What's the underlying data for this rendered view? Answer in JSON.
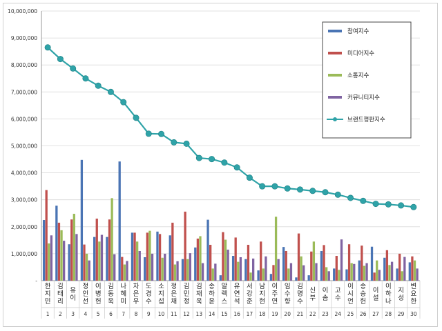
{
  "chart_data": {
    "type": "bar",
    "title": "",
    "xlabel": "",
    "ylabel": "",
    "ylim": [
      0,
      10000000
    ],
    "yticks": [
      0,
      1000000,
      2000000,
      3000000,
      4000000,
      5000000,
      6000000,
      7000000,
      8000000,
      9000000,
      10000000
    ],
    "ytick_labels": [
      "-",
      "1,000,000",
      "2,000,000",
      "3,000,000",
      "4,000,000",
      "5,000,000",
      "6,000,000",
      "7,000,000",
      "8,000,000",
      "9,000,000",
      "10,000,000"
    ],
    "grid": true,
    "legend_position": "top-right",
    "categories": [
      "한지민",
      "김태리",
      "유이",
      "정인선",
      "이병헌",
      "김동욱",
      "나혜미",
      "차은우",
      "도경수",
      "소지섭",
      "정은채",
      "김민정",
      "김재욱",
      "송하윤",
      "알렉스",
      "유연석",
      "서강준",
      "남지현",
      "이주연",
      "임수향",
      "김명수",
      "신부",
      "이솜",
      "고수",
      "이시언",
      "송승헌",
      "이설",
      "이하나",
      "지성",
      "변요한"
    ],
    "ranks": [
      "1",
      "2",
      "3",
      "4",
      "5",
      "6",
      "7",
      "8",
      "9",
      "10",
      "11",
      "12",
      "13",
      "14",
      "15",
      "16",
      "17",
      "18",
      "19",
      "20",
      "21",
      "22",
      "23",
      "24",
      "25",
      "26",
      "27",
      "28",
      "29",
      "30"
    ],
    "series": [
      {
        "name": "참여지수",
        "kind": "bar",
        "color": "#4a74b4",
        "values": [
          2250000,
          2780000,
          1350000,
          4480000,
          1620000,
          1620000,
          4420000,
          1780000,
          870000,
          1820000,
          1680000,
          800000,
          1230000,
          2260000,
          200000,
          920000,
          800000,
          380000,
          250000,
          1250000,
          120000,
          200000,
          1100000,
          450000,
          420000,
          750000,
          1260000,
          850000,
          450000,
          680000
        ]
      },
      {
        "name": "미디어지수",
        "kind": "bar",
        "color": "#c0504d",
        "values": [
          3360000,
          2150000,
          2270000,
          1340000,
          2300000,
          2270000,
          880000,
          1780000,
          1780000,
          1730000,
          2150000,
          2560000,
          1560000,
          1330000,
          1800000,
          1600000,
          1330000,
          1450000,
          580000,
          1100000,
          1750000,
          1080000,
          1320000,
          920000,
          1350000,
          1300000,
          300000,
          1130000,
          1000000,
          900000
        ]
      },
      {
        "name": "소통지수",
        "kind": "bar",
        "color": "#9bbb59",
        "values": [
          1380000,
          1870000,
          2480000,
          1000000,
          1450000,
          3060000,
          600000,
          1450000,
          1850000,
          850000,
          600000,
          800000,
          1650000,
          450000,
          1520000,
          700000,
          300000,
          450000,
          2370000,
          450000,
          900000,
          1450000,
          500000,
          400000,
          650000,
          550000,
          750000,
          580000,
          350000,
          750000
        ]
      },
      {
        "name": "커뮤니티지수",
        "kind": "bar",
        "color": "#8064a2",
        "values": [
          1680000,
          1480000,
          1730000,
          750000,
          1700000,
          980000,
          730000,
          1100000,
          1000000,
          1000000,
          720000,
          1020000,
          650000,
          630000,
          1150000,
          870000,
          820000,
          900000,
          800000,
          650000,
          570000,
          650000,
          350000,
          1530000,
          620000,
          650000,
          400000,
          700000,
          880000,
          450000
        ]
      },
      {
        "name": "브랜드평판지수",
        "kind": "line",
        "color": "#2fa3a8",
        "values": [
          8650000,
          8220000,
          7870000,
          7500000,
          7230000,
          7000000,
          6620000,
          6040000,
          5450000,
          5440000,
          5130000,
          5080000,
          4550000,
          4510000,
          4380000,
          4200000,
          3820000,
          3500000,
          3500000,
          3420000,
          3380000,
          3330000,
          3280000,
          3190000,
          3070000,
          2960000,
          2850000,
          2830000,
          2790000,
          2730000
        ]
      }
    ]
  }
}
